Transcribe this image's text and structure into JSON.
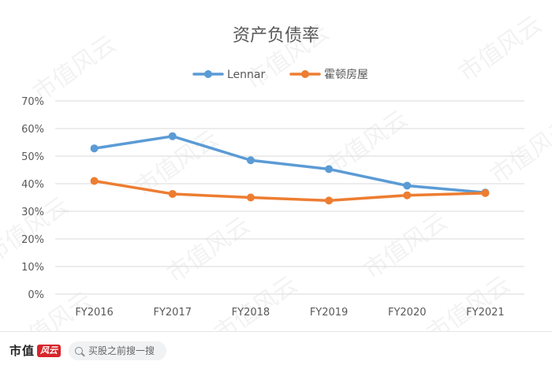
{
  "chart_data": {
    "type": "line",
    "title": "资产负债率",
    "categories": [
      "FY2016",
      "FY2017",
      "FY2018",
      "FY2019",
      "FY2020",
      "FY2021"
    ],
    "series": [
      {
        "name": "Lennar",
        "color": "#5b9bd5",
        "values": [
          52.8,
          57.2,
          48.5,
          45.3,
          39.3,
          36.8
        ]
      },
      {
        "name": "霍顿房屋",
        "color": "#ed7d31",
        "values": [
          41.0,
          36.3,
          35.0,
          33.9,
          35.8,
          36.6
        ]
      }
    ],
    "ylim": [
      0,
      70
    ],
    "y_ticks": [
      "0%",
      "10%",
      "20%",
      "30%",
      "40%",
      "50%",
      "60%",
      "70%"
    ],
    "xlabel": "",
    "ylabel": "",
    "grid": true,
    "legend_position": "top"
  },
  "watermark": "市值风云",
  "footer": {
    "brand_name": "市值",
    "brand_mark": "风云",
    "search_placeholder": "买股之前搜一搜",
    "search_icon": "search-icon"
  }
}
